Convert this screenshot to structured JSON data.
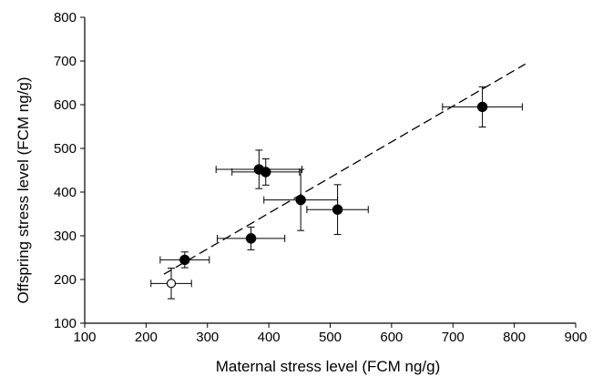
{
  "chart_data": {
    "type": "scatter",
    "title": "",
    "xlabel": "Maternal stress level (FCM ng/g)",
    "ylabel": "Offspring stress level (FCM ng/g)",
    "xlim": [
      100,
      900
    ],
    "ylim": [
      100,
      800
    ],
    "xticks": [
      100,
      200,
      300,
      400,
      500,
      600,
      700,
      800,
      900
    ],
    "yticks": [
      100,
      200,
      300,
      400,
      500,
      600,
      700,
      800
    ],
    "grid": false,
    "legend": "none",
    "series": [
      {
        "marker": "filled-circle",
        "points": [
          {
            "x": 263,
            "y": 245,
            "x_err": 40,
            "y_err": 18
          },
          {
            "x": 371,
            "y": 294,
            "x_err": 55,
            "y_err": 26
          },
          {
            "x": 384,
            "y": 452,
            "x_err": 70,
            "y_err": 44
          },
          {
            "x": 395,
            "y": 446,
            "x_err": 55,
            "y_err": 30
          },
          {
            "x": 452,
            "y": 382,
            "x_err": 60,
            "y_err": 70
          },
          {
            "x": 512,
            "y": 360,
            "x_err": 50,
            "y_err": 57
          },
          {
            "x": 748,
            "y": 595,
            "x_err": 65,
            "y_err": 46
          }
        ]
      },
      {
        "marker": "open-circle",
        "points": [
          {
            "x": 241,
            "y": 191,
            "x_err": 33,
            "y_err": 35
          }
        ]
      }
    ],
    "trendline": {
      "style": "dashed",
      "x": [
        229,
        818
      ],
      "y": [
        212,
        693
      ]
    }
  }
}
